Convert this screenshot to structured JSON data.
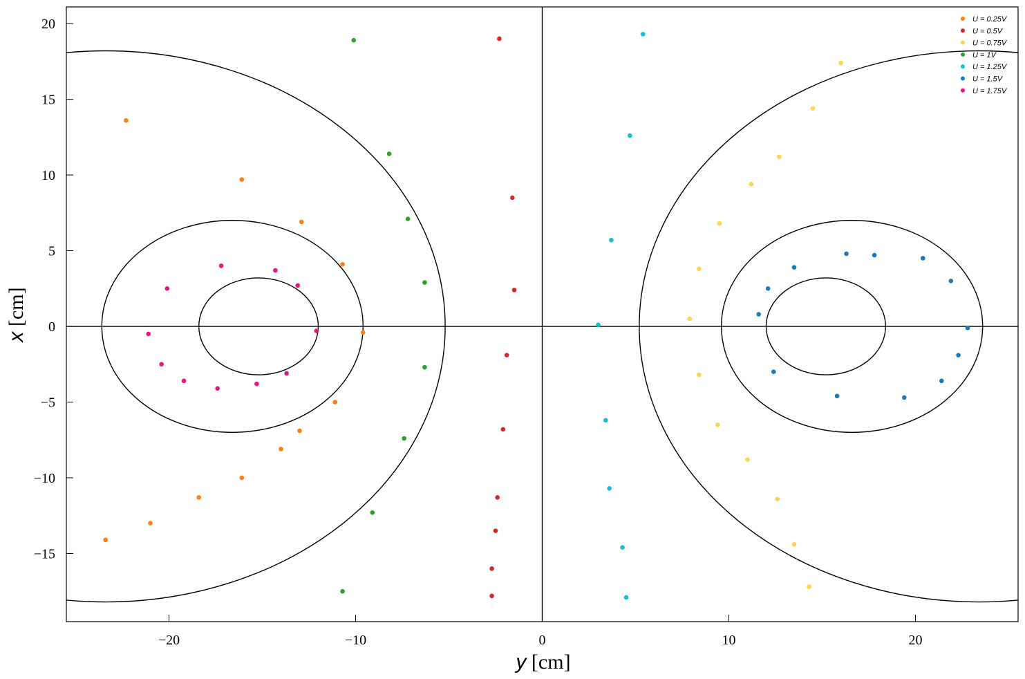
{
  "chart_data": {
    "type": "scatter",
    "title": "",
    "xlabel": {
      "symbol": "y",
      "unit": " [cm]"
    },
    "ylabel": {
      "symbol": "x",
      "unit": " [cm]"
    },
    "xlim": [
      -25.5,
      25.5
    ],
    "ylim": [
      -19.5,
      21.1
    ],
    "xticks": [
      {
        "value": -20,
        "label": "−20"
      },
      {
        "value": -10,
        "label": "−10"
      },
      {
        "value": 0,
        "label": "0"
      },
      {
        "value": 10,
        "label": "10"
      },
      {
        "value": 20,
        "label": "20"
      }
    ],
    "yticks": [
      {
        "value": -15,
        "label": "−15"
      },
      {
        "value": -10,
        "label": "−10"
      },
      {
        "value": -5,
        "label": "−5"
      },
      {
        "value": 0,
        "label": "0"
      },
      {
        "value": 5,
        "label": "5"
      },
      {
        "value": 10,
        "label": "10"
      },
      {
        "value": 15,
        "label": "15"
      },
      {
        "value": 20,
        "label": "20"
      }
    ],
    "grid": false,
    "legend_position": "top-right",
    "reference_lines": [
      {
        "orientation": "vertical",
        "value": 0
      },
      {
        "orientation": "horizontal",
        "value": 0
      }
    ],
    "reference_ellipses": [
      {
        "cx": -23.4,
        "cy": 0,
        "rx": 18.2,
        "ry": 18.2
      },
      {
        "cx": -16.6,
        "cy": 0,
        "rx": 7.0,
        "ry": 7.0
      },
      {
        "cx": -15.2,
        "cy": 0,
        "rx": 3.2,
        "ry": 3.2
      },
      {
        "cx": 23.4,
        "cy": 0,
        "rx": 18.2,
        "ry": 18.2
      },
      {
        "cx": 16.6,
        "cy": 0,
        "rx": 7.0,
        "ry": 7.0
      },
      {
        "cx": 15.2,
        "cy": 0,
        "rx": 3.2,
        "ry": 3.2
      }
    ],
    "series": [
      {
        "name": "U = 0.25V",
        "color": "#ff7f0e",
        "points": [
          [
            -22.3,
            13.6
          ],
          [
            -16.1,
            9.7
          ],
          [
            -12.9,
            6.9
          ],
          [
            -10.7,
            4.1
          ],
          [
            -9.6,
            -0.4
          ],
          [
            -11.1,
            -5.0
          ],
          [
            -13.0,
            -6.9
          ],
          [
            -14.0,
            -8.1
          ],
          [
            -16.1,
            -10.0
          ],
          [
            -18.4,
            -11.3
          ],
          [
            -21.0,
            -13.0
          ],
          [
            -23.4,
            -14.1
          ]
        ]
      },
      {
        "name": "U = 0.5V",
        "color": "#d62728",
        "points": [
          [
            -2.3,
            19.0
          ],
          [
            -1.6,
            8.5
          ],
          [
            -1.5,
            2.4
          ],
          [
            -1.9,
            -1.9
          ],
          [
            -2.1,
            -6.8
          ],
          [
            -2.4,
            -11.3
          ],
          [
            -2.5,
            -13.5
          ],
          [
            -2.7,
            -16.0
          ],
          [
            -2.7,
            -17.8
          ]
        ]
      },
      {
        "name": "U = 0.75V",
        "color": "#ffd54f",
        "points": [
          [
            16.0,
            17.4
          ],
          [
            14.5,
            14.4
          ],
          [
            12.7,
            11.2
          ],
          [
            11.2,
            9.4
          ],
          [
            9.5,
            6.8
          ],
          [
            8.4,
            3.8
          ],
          [
            7.9,
            0.5
          ],
          [
            8.4,
            -3.2
          ],
          [
            9.4,
            -6.5
          ],
          [
            11.0,
            -8.8
          ],
          [
            12.6,
            -11.4
          ],
          [
            13.5,
            -14.4
          ],
          [
            14.3,
            -17.2
          ]
        ]
      },
      {
        "name": "U = 1V",
        "color": "#2ca02c",
        "points": [
          [
            -10.1,
            18.9
          ],
          [
            -8.2,
            11.4
          ],
          [
            -7.2,
            7.1
          ],
          [
            -6.3,
            2.9
          ],
          [
            -6.3,
            -2.7
          ],
          [
            -7.4,
            -7.4
          ],
          [
            -9.1,
            -12.3
          ],
          [
            -10.7,
            -17.5
          ]
        ]
      },
      {
        "name": "U = 1.25V",
        "color": "#17becf",
        "points": [
          [
            5.4,
            19.3
          ],
          [
            4.7,
            12.6
          ],
          [
            3.7,
            5.7
          ],
          [
            3.0,
            0.1
          ],
          [
            3.4,
            -6.2
          ],
          [
            3.6,
            -10.7
          ],
          [
            4.3,
            -14.6
          ],
          [
            4.5,
            -17.9
          ]
        ]
      },
      {
        "name": "U = 1.5V",
        "color": "#1f77b4",
        "points": [
          [
            16.3,
            4.8
          ],
          [
            17.8,
            4.7
          ],
          [
            20.4,
            4.5
          ],
          [
            21.9,
            3.0
          ],
          [
            22.8,
            -0.1
          ],
          [
            22.3,
            -1.9
          ],
          [
            21.4,
            -3.6
          ],
          [
            19.4,
            -4.7
          ],
          [
            15.8,
            -4.6
          ],
          [
            12.4,
            -3.0
          ],
          [
            11.6,
            0.8
          ],
          [
            12.1,
            2.5
          ],
          [
            13.5,
            3.9
          ]
        ]
      },
      {
        "name": "U = 1.75V",
        "color": "#e7157b",
        "points": [
          [
            -17.2,
            4.0
          ],
          [
            -14.3,
            3.7
          ],
          [
            -13.1,
            2.7
          ],
          [
            -12.1,
            -0.3
          ],
          [
            -13.7,
            -3.1
          ],
          [
            -15.3,
            -3.8
          ],
          [
            -17.4,
            -4.1
          ],
          [
            -19.2,
            -3.6
          ],
          [
            -20.4,
            -2.5
          ],
          [
            -21.1,
            -0.5
          ],
          [
            -20.1,
            2.5
          ]
        ]
      }
    ]
  }
}
